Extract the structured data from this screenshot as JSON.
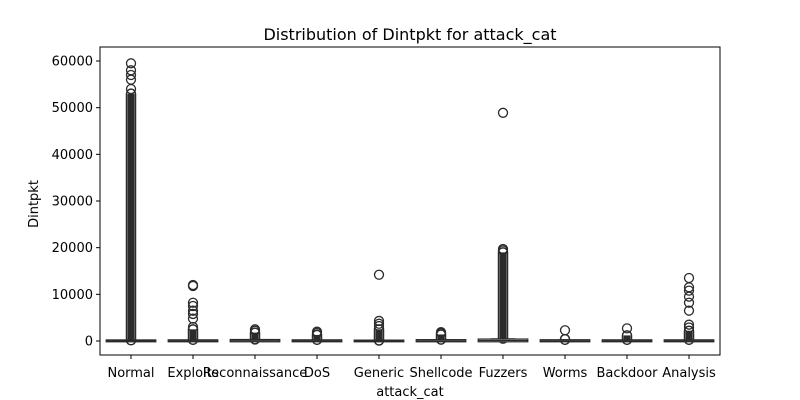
{
  "chart_data": {
    "type": "box",
    "title": "Distribution of Dintpkt for attack_cat",
    "xlabel": "attack_cat",
    "ylabel": "Dintpkt",
    "ylim": [
      -3000,
      63000
    ],
    "yticks": [
      0,
      10000,
      20000,
      30000,
      40000,
      50000,
      60000
    ],
    "ytick_labels": [
      "0",
      "10000",
      "20000",
      "30000",
      "40000",
      "50000",
      "60000"
    ],
    "box_color": "#2b2b2b",
    "categories": [
      "Normal",
      "Exploits",
      "Reconnaissance",
      "DoS",
      "Generic",
      "Shellcode",
      "Fuzzers",
      "Worms",
      "Backdoor",
      "Analysis"
    ],
    "boxes": [
      {
        "name": "Normal",
        "q1": 0,
        "median": 10,
        "q3": 60,
        "whislo": 0,
        "whishi": 120,
        "fliers_dense": [
          150,
          53000
        ],
        "fliers": [
          54000,
          56000,
          57000,
          58000,
          59500
        ]
      },
      {
        "name": "Exploits",
        "q1": 0,
        "median": 20,
        "q3": 80,
        "whislo": 0,
        "whishi": 200,
        "fliers_dense": [
          250,
          2500
        ],
        "fliers": [
          3000,
          4800,
          5800,
          6500,
          7500,
          8200,
          11800,
          12000
        ]
      },
      {
        "name": "Reconnaissance",
        "q1": 0,
        "median": 50,
        "q3": 150,
        "whislo": 0,
        "whishi": 300,
        "fliers_dense": [
          350,
          1800
        ],
        "fliers": [
          2200,
          2500
        ]
      },
      {
        "name": "DoS",
        "q1": 0,
        "median": 20,
        "q3": 80,
        "whislo": 0,
        "whishi": 200,
        "fliers_dense": [
          250,
          1300
        ],
        "fliers": [
          1700,
          2000
        ]
      },
      {
        "name": "Generic",
        "q1": 0,
        "median": 5,
        "q3": 20,
        "whislo": 0,
        "whishi": 50,
        "fliers_dense": [
          100,
          2500
        ],
        "fliers": [
          3200,
          3700,
          4300,
          14200
        ]
      },
      {
        "name": "Shellcode",
        "q1": 0,
        "median": 30,
        "q3": 120,
        "whislo": 0,
        "whishi": 250,
        "fliers_dense": [
          300,
          1400
        ],
        "fliers": [
          1700,
          1900
        ]
      },
      {
        "name": "Fuzzers",
        "q1": 0,
        "median": 100,
        "q3": 250,
        "whislo": 0,
        "whishi": 450,
        "fliers_dense": [
          500,
          19000
        ],
        "fliers": [
          19400,
          19700,
          48900
        ]
      },
      {
        "name": "Worms",
        "q1": 0,
        "median": 30,
        "q3": 100,
        "whislo": 0,
        "whishi": 200,
        "fliers_dense": [
          250,
          400
        ],
        "fliers": [
          2300
        ]
      },
      {
        "name": "Backdoor",
        "q1": 0,
        "median": 20,
        "q3": 80,
        "whislo": 0,
        "whishi": 200,
        "fliers_dense": [
          250,
          1200
        ],
        "fliers": [
          2700
        ]
      },
      {
        "name": "Analysis",
        "q1": 0,
        "median": 20,
        "q3": 80,
        "whislo": 0,
        "whishi": 200,
        "fliers_dense": [
          250,
          2200
        ],
        "fliers": [
          2900,
          3500,
          6500,
          8200,
          9500,
          10800,
          11500,
          13500
        ]
      }
    ]
  }
}
